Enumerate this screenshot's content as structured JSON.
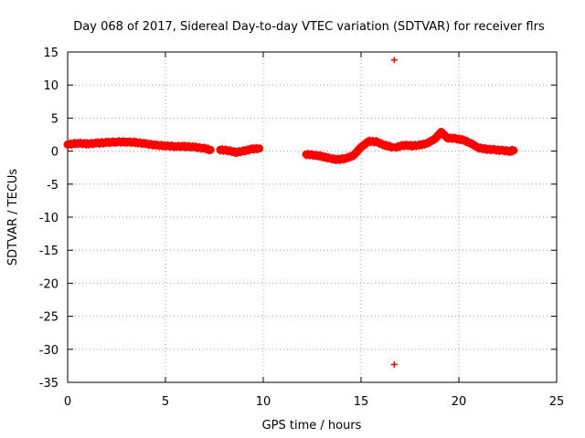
{
  "chart_data": {
    "type": "scatter",
    "title": "Day 068 of 2017, Sidereal Day-to-day VTEC variation (SDTVAR) for receiver flrs",
    "xlabel": "GPS time / hours",
    "ylabel": "SDTVAR / TECUs",
    "xlim": [
      0,
      25
    ],
    "ylim": [
      -35,
      15
    ],
    "xticks": [
      0,
      5,
      10,
      15,
      20,
      25
    ],
    "yticks": [
      15,
      10,
      5,
      0,
      -5,
      -10,
      -15,
      -20,
      -25,
      -30,
      -35
    ],
    "xtick_labels": [
      "0",
      "5",
      "10",
      "15",
      "20",
      "25"
    ],
    "ytick_labels": [
      "15",
      "10",
      "5",
      "0",
      "-5",
      "-10",
      "-15",
      "-20",
      "-25",
      "-30",
      "-35"
    ],
    "grid": true,
    "marker": "+",
    "color": "#ff0000",
    "series": [
      {
        "name": "SDTVAR",
        "segments": [
          {
            "x": [
              0.0,
              0.5,
              1.0,
              1.5,
              2.0,
              2.5,
              3.0,
              3.5,
              4.0,
              4.5,
              5.0,
              5.5,
              6.0,
              6.5,
              7.0,
              7.3
            ],
            "y": [
              1.0,
              1.2,
              1.1,
              1.2,
              1.3,
              1.4,
              1.4,
              1.3,
              1.1,
              0.9,
              0.8,
              0.7,
              0.7,
              0.6,
              0.4,
              0.2
            ]
          },
          {
            "x": [
              7.8,
              8.2,
              8.6,
              9.0,
              9.4,
              9.8
            ],
            "y": [
              0.2,
              0.1,
              -0.2,
              0.0,
              0.3,
              0.4
            ]
          },
          {
            "x": [
              12.2,
              12.6,
              13.0,
              13.4,
              13.8,
              14.2,
              14.6,
              15.0,
              15.4,
              15.8,
              16.2,
              16.6
            ],
            "y": [
              -0.5,
              -0.6,
              -0.8,
              -1.1,
              -1.3,
              -1.1,
              -0.7,
              0.6,
              1.5,
              1.4,
              0.9,
              0.6
            ]
          },
          {
            "x": [
              16.8,
              17.2,
              17.6,
              18.0,
              18.4,
              18.8,
              19.1,
              19.4,
              19.8,
              20.2,
              20.6,
              21.0,
              21.4,
              21.8,
              22.2,
              22.6,
              22.8
            ],
            "y": [
              0.6,
              0.9,
              0.8,
              0.9,
              1.2,
              1.9,
              2.9,
              2.0,
              1.9,
              1.7,
              1.2,
              0.5,
              0.3,
              0.2,
              0.1,
              0.0,
              0.1
            ]
          }
        ],
        "outliers": {
          "x": [
            16.7,
            16.7
          ],
          "y": [
            13.8,
            -32.3
          ]
        }
      }
    ]
  }
}
